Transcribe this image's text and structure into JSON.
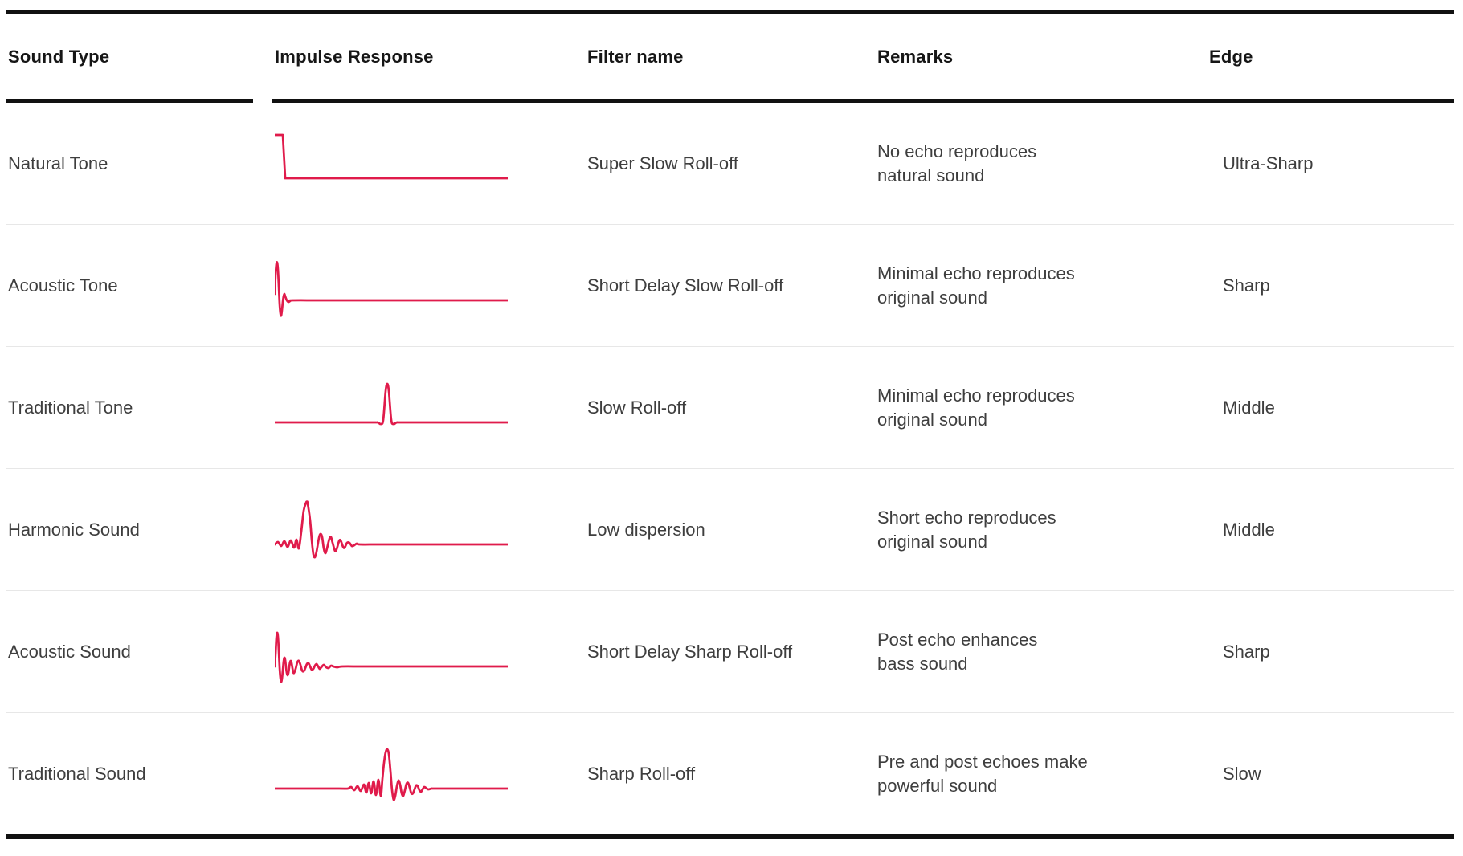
{
  "header": {
    "columns": [
      "Sound Type",
      "Impulse Response",
      "Filter name",
      "Remarks",
      "Edge"
    ]
  },
  "rows": [
    {
      "sound_type": "Natural Tone",
      "waveform": "step-response-icon",
      "filter_name": "Super Slow Roll-off",
      "remarks": "No echo reproduces\nnatural sound",
      "edge": "Ultra-Sharp"
    },
    {
      "sound_type": "Acoustic Tone",
      "waveform": "leading-spike-short-ring-icon",
      "filter_name": "Short Delay Slow Roll-off",
      "remarks": "Minimal echo reproduces\noriginal sound",
      "edge": "Sharp"
    },
    {
      "sound_type": "Traditional Tone",
      "waveform": "centered-spike-icon",
      "filter_name": "Slow Roll-off",
      "remarks": "Minimal echo reproduces\noriginal sound",
      "edge": "Middle"
    },
    {
      "sound_type": "Harmonic Sound",
      "waveform": "spike-post-ringing-icon",
      "filter_name": "Low dispersion",
      "remarks": "Short echo reproduces\noriginal sound",
      "edge": "Middle"
    },
    {
      "sound_type": "Acoustic Sound",
      "waveform": "leading-spike-decay-ringing-icon",
      "filter_name": "Short Delay Sharp Roll-off",
      "remarks": "Post echo enhances\nbass sound",
      "edge": "Sharp"
    },
    {
      "sound_type": "Traditional Sound",
      "waveform": "symmetric-sinc-spike-icon",
      "filter_name": "Sharp Roll-off",
      "remarks": "Pre and post echoes make\npowerful sound",
      "edge": "Slow"
    }
  ],
  "colors": {
    "accent": "#e01b4b",
    "border": "#111111",
    "body_text": "#3e3e3e",
    "header_text": "#161616",
    "separator": "#e7e7e7"
  }
}
